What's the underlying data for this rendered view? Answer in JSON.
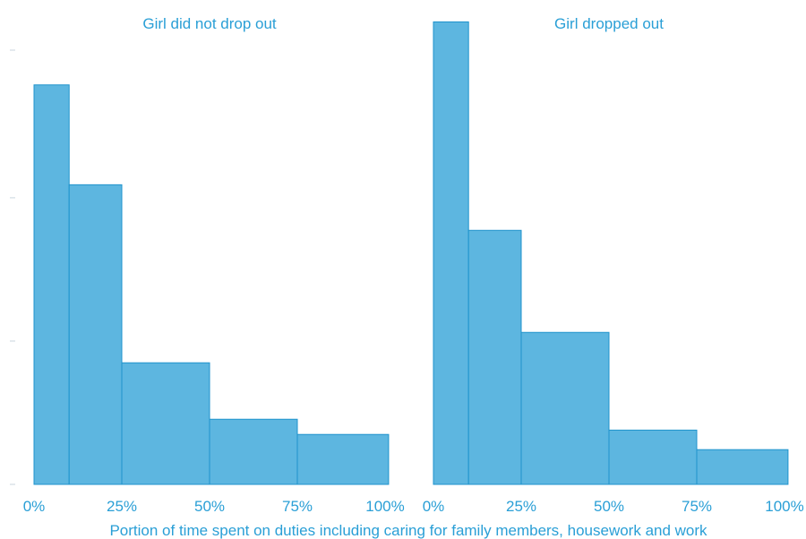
{
  "chart_data": {
    "type": "bar",
    "subtype": "histogram",
    "xlabel": "Portion of time spent on duties including caring for family members, housework and work",
    "ylabel": "",
    "xlim": [
      0,
      100
    ],
    "ylim": [
      0,
      1
    ],
    "x_ticks": [
      "0%",
      "25%",
      "50%",
      "75%",
      "100%"
    ],
    "x_tick_values": [
      0,
      25,
      50,
      75,
      100
    ],
    "y_tick_values": [
      0,
      0.33,
      0.66,
      1.0
    ],
    "grid": false,
    "colors": {
      "bar_fill": "#5db6e0",
      "bar_edge": "#1f93cc",
      "text": "#2a9fd6",
      "tick": "#c8d6de"
    },
    "panels": [
      {
        "title": "Girl did not drop out",
        "bins": [
          {
            "x0": 0,
            "x1": 10,
            "value": 0.92
          },
          {
            "x0": 10,
            "x1": 25,
            "value": 0.69
          },
          {
            "x0": 25,
            "x1": 50,
            "value": 0.28
          },
          {
            "x0": 50,
            "x1": 75,
            "value": 0.15
          },
          {
            "x0": 75,
            "x1": 101,
            "value": 0.115
          }
        ]
      },
      {
        "title": "Girl dropped out",
        "bins": [
          {
            "x0": 0,
            "x1": 10,
            "value": 1.065
          },
          {
            "x0": 10,
            "x1": 25,
            "value": 0.585
          },
          {
            "x0": 25,
            "x1": 50,
            "value": 0.35
          },
          {
            "x0": 50,
            "x1": 75,
            "value": 0.125
          },
          {
            "x0": 75,
            "x1": 101,
            "value": 0.08
          }
        ]
      }
    ]
  }
}
